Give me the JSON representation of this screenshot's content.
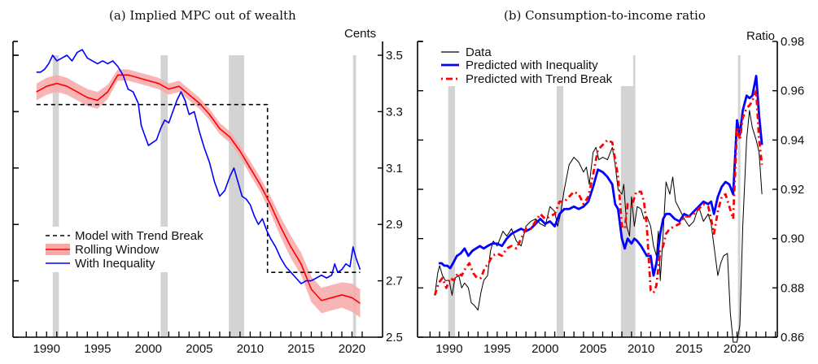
{
  "chart_data": [
    {
      "type": "line",
      "panel_title": "(a) Implied MPC out of wealth",
      "ylabel": "Cents",
      "xlabel": "",
      "xlim": [
        1986.7,
        2023
      ],
      "ylim": [
        2.5,
        3.55
      ],
      "x_ticks": [
        1990,
        1995,
        2000,
        2005,
        2010,
        2015,
        2020
      ],
      "x_tick_labels": [
        "1990",
        "1995",
        "2000",
        "2005",
        "2010",
        "2015",
        "2020"
      ],
      "y_ticks": [
        2.5,
        2.7,
        2.9,
        3.1,
        3.3,
        3.5
      ],
      "y_tick_labels": [
        "2.5",
        "2.7",
        "2.9",
        "3.1",
        "3.3",
        "3.5"
      ],
      "y_axis_side": "right",
      "grid": false,
      "legend_position": "lower-left",
      "recessions": [
        [
          1990.6,
          1991.2
        ],
        [
          2001.2,
          2001.9
        ],
        [
          2007.9,
          2009.4
        ],
        [
          2020.1,
          2020.4
        ]
      ],
      "series": [
        {
          "name": "Model with Trend Break",
          "style": "dashed",
          "color": "#000000",
          "x": [
            1989.0,
            2011.7,
            2011.7,
            2020.8
          ],
          "y": [
            3.325,
            3.325,
            2.73,
            2.73
          ]
        },
        {
          "name": "Rolling Window",
          "style": "solid-with-band",
          "color": "#ff0000",
          "band_color": "#f7a8a8",
          "x": [
            1989.0,
            1990,
            1991,
            1992,
            1993,
            1994,
            1995,
            1996,
            1997,
            1998,
            1999,
            2000,
            2001,
            2002,
            2003,
            2004,
            2005,
            2006,
            2007,
            2008,
            2009,
            2010,
            2011,
            2012,
            2013,
            2014,
            2015,
            2016,
            2017,
            2018,
            2019,
            2020,
            2020.8
          ],
          "y": [
            3.37,
            3.39,
            3.4,
            3.39,
            3.37,
            3.35,
            3.34,
            3.37,
            3.43,
            3.43,
            3.42,
            3.41,
            3.4,
            3.38,
            3.39,
            3.36,
            3.33,
            3.29,
            3.24,
            3.21,
            3.16,
            3.1,
            3.04,
            2.97,
            2.89,
            2.82,
            2.76,
            2.67,
            2.63,
            2.64,
            2.65,
            2.64,
            2.62
          ],
          "band_halfwidth": [
            0.03,
            0.03,
            0.03,
            0.03,
            0.03,
            0.03,
            0.03,
            0.025,
            0.02,
            0.02,
            0.02,
            0.02,
            0.02,
            0.02,
            0.02,
            0.02,
            0.02,
            0.02,
            0.02,
            0.02,
            0.02,
            0.025,
            0.025,
            0.03,
            0.035,
            0.04,
            0.04,
            0.045,
            0.045,
            0.045,
            0.045,
            0.05,
            0.05
          ]
        },
        {
          "name": "With Inequality",
          "style": "solid",
          "color": "#0000ff",
          "x": [
            1989.0,
            1989.4,
            1989.8,
            1990.2,
            1990.6,
            1991.0,
            1991.5,
            1992.0,
            1992.5,
            1993.0,
            1993.5,
            1994.0,
            1994.5,
            1995.0,
            1995.5,
            1996.0,
            1996.5,
            1997.0,
            1997.5,
            1998.0,
            1998.5,
            1999.0,
            1999.3,
            1999.7,
            2000.0,
            2000.4,
            2000.8,
            2001.2,
            2001.6,
            2002.0,
            2002.4,
            2002.8,
            2003.2,
            2003.6,
            2004.0,
            2004.5,
            2005.0,
            2005.5,
            2006.0,
            2006.5,
            2007.0,
            2007.5,
            2008.0,
            2008.4,
            2008.8,
            2009.2,
            2009.6,
            2010.0,
            2010.4,
            2010.8,
            2011.2,
            2011.6,
            2012.0,
            2012.5,
            2013.0,
            2013.5,
            2014.0,
            2014.5,
            2015.0,
            2015.5,
            2016.0,
            2016.5,
            2017.0,
            2017.5,
            2018.0,
            2018.3,
            2018.6,
            2019.0,
            2019.4,
            2019.8,
            2020.1,
            2020.4,
            2020.8
          ],
          "y": [
            3.44,
            3.44,
            3.45,
            3.47,
            3.5,
            3.48,
            3.49,
            3.5,
            3.48,
            3.51,
            3.52,
            3.49,
            3.48,
            3.47,
            3.48,
            3.47,
            3.48,
            3.46,
            3.43,
            3.38,
            3.37,
            3.33,
            3.25,
            3.21,
            3.18,
            3.19,
            3.2,
            3.24,
            3.27,
            3.26,
            3.3,
            3.34,
            3.37,
            3.34,
            3.29,
            3.3,
            3.23,
            3.17,
            3.12,
            3.05,
            3.0,
            3.02,
            3.07,
            3.1,
            3.05,
            3.0,
            2.99,
            2.97,
            2.93,
            2.9,
            2.92,
            2.88,
            2.85,
            2.82,
            2.78,
            2.75,
            2.73,
            2.71,
            2.69,
            2.7,
            2.7,
            2.71,
            2.72,
            2.71,
            2.72,
            2.76,
            2.73,
            2.74,
            2.76,
            2.75,
            2.82,
            2.78,
            2.74
          ]
        }
      ]
    },
    {
      "type": "line",
      "panel_title": "(b) Consumption-to-income ratio",
      "ylabel": "Ratio",
      "xlabel": "",
      "xlim": [
        1986.7,
        2024.2
      ],
      "ylim": [
        0.86,
        0.98
      ],
      "x_ticks": [
        1990,
        1995,
        2000,
        2005,
        2010,
        2015,
        2020
      ],
      "x_tick_labels": [
        "1990",
        "1995",
        "2000",
        "2005",
        "2010",
        "2015",
        "2020"
      ],
      "y_ticks": [
        0.86,
        0.88,
        0.9,
        0.92,
        0.94,
        0.96,
        0.98
      ],
      "y_tick_labels": [
        "0.86",
        "0.88",
        "0.90",
        "0.92",
        "0.94",
        "0.96",
        "0.98"
      ],
      "y_axis_side": "right",
      "grid": false,
      "legend_position": "top-left",
      "recessions": [
        [
          1989.9,
          1990.6
        ],
        [
          2001.2,
          2001.9
        ],
        [
          2007.9,
          2009.4
        ],
        [
          2020.1,
          2020.3
        ]
      ],
      "series": [
        {
          "name": "Data",
          "style": "solid-thin",
          "color": "#000000",
          "x": [
            1988.5,
            1988.8,
            1989.0,
            1989.3,
            1989.6,
            1990.0,
            1990.3,
            1990.6,
            1991.0,
            1991.3,
            1991.6,
            1992.0,
            1992.3,
            1992.6,
            1993.0,
            1993.3,
            1993.6,
            1994.0,
            1994.3,
            1994.6,
            1995.0,
            1995.3,
            1995.6,
            1996.0,
            1996.5,
            1997.0,
            1997.5,
            1998.0,
            1998.5,
            1999.0,
            1999.5,
            2000.0,
            2000.5,
            2001.0,
            2001.3,
            2001.6,
            2002.0,
            2002.5,
            2003.0,
            2003.5,
            2004.0,
            2004.3,
            2004.6,
            2005.0,
            2005.3,
            2005.6,
            2006.0,
            2006.5,
            2007.0,
            2007.3,
            2007.6,
            2008.0,
            2008.2,
            2008.5,
            2008.8,
            2009.0,
            2009.3,
            2009.6,
            2010.0,
            2010.3,
            2010.6,
            2011.0,
            2011.3,
            2011.6,
            2011.8,
            2012.0,
            2012.3,
            2012.6,
            2013.0,
            2013.3,
            2013.6,
            2014.0,
            2014.5,
            2015.0,
            2015.5,
            2016.0,
            2016.5,
            2017.0,
            2017.3,
            2017.6,
            2018.0,
            2018.3,
            2018.6,
            2019.0,
            2019.3,
            2019.6,
            2020.0,
            2020.3,
            2020.6,
            2021.0,
            2021.3,
            2021.6,
            2022.0,
            2022.3,
            2022.6
          ],
          "y": [
            0.877,
            0.886,
            0.889,
            0.885,
            0.883,
            0.883,
            0.877,
            0.884,
            0.885,
            0.88,
            0.882,
            0.88,
            0.874,
            0.873,
            0.871,
            0.878,
            0.883,
            0.885,
            0.895,
            0.899,
            0.897,
            0.9,
            0.903,
            0.901,
            0.904,
            0.899,
            0.897,
            0.905,
            0.907,
            0.908,
            0.906,
            0.905,
            0.913,
            0.911,
            0.905,
            0.91,
            0.92,
            0.93,
            0.933,
            0.931,
            0.927,
            0.929,
            0.922,
            0.935,
            0.937,
            0.932,
            0.933,
            0.932,
            0.937,
            0.93,
            0.92,
            0.918,
            0.922,
            0.905,
            0.901,
            0.917,
            0.905,
            0.913,
            0.912,
            0.908,
            0.909,
            0.905,
            0.897,
            0.893,
            0.903,
            0.883,
            0.902,
            0.923,
            0.918,
            0.925,
            0.915,
            0.912,
            0.908,
            0.905,
            0.907,
            0.913,
            0.907,
            0.91,
            0.906,
            0.897,
            0.885,
            0.89,
            0.893,
            0.894,
            0.87,
            0.858,
            0.858,
            0.865,
            0.905,
            0.94,
            0.952,
            0.945,
            0.94,
            0.935,
            0.918
          ]
        },
        {
          "name": "Predicted with Inequality",
          "style": "solid-thick",
          "color": "#0000ff",
          "x": [
            1988.9,
            1989.2,
            1989.5,
            1989.8,
            1990.1,
            1990.4,
            1990.8,
            1991.2,
            1991.6,
            1992.0,
            1992.4,
            1992.8,
            1993.2,
            1993.6,
            1994.0,
            1994.5,
            1995.0,
            1995.5,
            1996.0,
            1996.5,
            1997.0,
            1997.5,
            1998.0,
            1998.5,
            1999.0,
            1999.5,
            2000.0,
            2000.5,
            2001.0,
            2001.5,
            2002.0,
            2002.5,
            2003.0,
            2003.5,
            2004.0,
            2004.5,
            2005.0,
            2005.5,
            2006.0,
            2006.5,
            2007.0,
            2007.3,
            2007.6,
            2008.0,
            2008.3,
            2008.6,
            2009.0,
            2009.3,
            2009.6,
            2010.0,
            2010.3,
            2010.6,
            2011.0,
            2011.3,
            2011.6,
            2012.0,
            2012.3,
            2012.6,
            2013.0,
            2013.5,
            2014.0,
            2014.5,
            2015.0,
            2015.5,
            2016.0,
            2016.5,
            2017.0,
            2017.3,
            2017.6,
            2018.0,
            2018.4,
            2018.8,
            2019.2,
            2019.6,
            2020.0,
            2020.3,
            2020.6,
            2021.0,
            2021.3,
            2021.6,
            2022.0,
            2022.3,
            2022.6
          ],
          "y": [
            0.89,
            0.89,
            0.889,
            0.889,
            0.888,
            0.89,
            0.893,
            0.894,
            0.896,
            0.893,
            0.895,
            0.896,
            0.897,
            0.896,
            0.897,
            0.898,
            0.898,
            0.897,
            0.9,
            0.902,
            0.903,
            0.904,
            0.903,
            0.904,
            0.906,
            0.908,
            0.906,
            0.907,
            0.905,
            0.91,
            0.912,
            0.912,
            0.913,
            0.912,
            0.913,
            0.915,
            0.921,
            0.928,
            0.927,
            0.925,
            0.922,
            0.914,
            0.912,
            0.9,
            0.896,
            0.9,
            0.898,
            0.9,
            0.899,
            0.897,
            0.895,
            0.893,
            0.893,
            0.885,
            0.89,
            0.902,
            0.908,
            0.91,
            0.91,
            0.908,
            0.907,
            0.91,
            0.909,
            0.911,
            0.913,
            0.915,
            0.914,
            0.915,
            0.91,
            0.917,
            0.921,
            0.923,
            0.922,
            0.918,
            0.948,
            0.942,
            0.952,
            0.958,
            0.957,
            0.958,
            0.966,
            0.95,
            0.938
          ]
        },
        {
          "name": "Predicted with Trend Break",
          "style": "dash-dot-thick",
          "color": "#ff0000",
          "x": [
            1988.5,
            1988.9,
            1989.3,
            1989.7,
            1990.1,
            1990.5,
            1990.9,
            1991.3,
            1991.7,
            1992.1,
            1992.5,
            1992.9,
            1993.3,
            1993.7,
            1994.1,
            1994.5,
            1995.0,
            1995.5,
            1996.0,
            1996.5,
            1997.0,
            1997.5,
            1998.0,
            1998.5,
            1999.0,
            1999.5,
            2000.0,
            2000.5,
            2001.0,
            2001.5,
            2002.0,
            2002.5,
            2003.0,
            2003.5,
            2004.0,
            2004.5,
            2005.0,
            2005.5,
            2006.0,
            2006.5,
            2007.0,
            2007.3,
            2007.6,
            2008.0,
            2008.3,
            2008.6,
            2009.0,
            2009.5,
            2010.0,
            2010.3,
            2010.6,
            2011.0,
            2011.3,
            2011.6,
            2012.0,
            2012.3,
            2012.6,
            2013.0,
            2013.5,
            2014.0,
            2014.5,
            2015.0,
            2015.5,
            2016.0,
            2016.5,
            2017.0,
            2017.3,
            2017.6,
            2018.0,
            2018.4,
            2018.8,
            2019.2,
            2019.6,
            2020.0,
            2020.3,
            2020.6,
            2021.0,
            2021.3,
            2021.6,
            2022.0,
            2022.3,
            2022.6
          ],
          "y": [
            0.877,
            0.882,
            0.884,
            0.88,
            0.884,
            0.883,
            0.886,
            0.885,
            0.888,
            0.89,
            0.886,
            0.884,
            0.884,
            0.888,
            0.89,
            0.893,
            0.894,
            0.893,
            0.896,
            0.897,
            0.896,
            0.9,
            0.904,
            0.904,
            0.907,
            0.91,
            0.908,
            0.909,
            0.91,
            0.915,
            0.915,
            0.917,
            0.919,
            0.918,
            0.914,
            0.917,
            0.926,
            0.936,
            0.938,
            0.94,
            0.939,
            0.932,
            0.925,
            0.905,
            0.904,
            0.914,
            0.913,
            0.919,
            0.919,
            0.915,
            0.905,
            0.879,
            0.878,
            0.881,
            0.895,
            0.897,
            0.902,
            0.904,
            0.905,
            0.906,
            0.909,
            0.909,
            0.91,
            0.912,
            0.914,
            0.913,
            0.908,
            0.902,
            0.911,
            0.917,
            0.918,
            0.913,
            0.908,
            0.945,
            0.94,
            0.949,
            0.953,
            0.954,
            0.956,
            0.96,
            0.94,
            0.93
          ]
        }
      ]
    }
  ]
}
